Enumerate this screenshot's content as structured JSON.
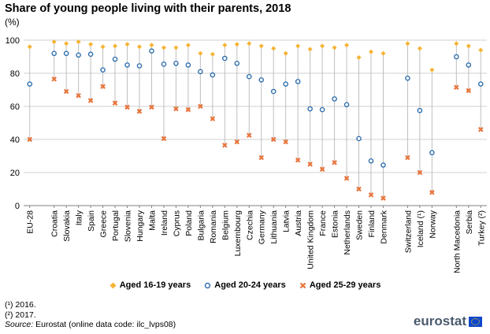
{
  "title": "Share of young people living with their parents, 2018",
  "unit": "(%)",
  "legend": {
    "s1": "Aged 16-19 years",
    "s2": "Aged 20-24 years",
    "s3": "Aged 25-29 years"
  },
  "notes": {
    "n1": "(¹) 2016.",
    "n2": "(²) 2017.",
    "source_label": "Source:",
    "source_text": " Eurostat (online data code: ilc_lvps08)"
  },
  "logo": "eurostat",
  "colors": {
    "s1": "#f5b335",
    "s2": "#2f6fad",
    "s3": "#e8743b",
    "grid": "#d0d0d0",
    "stem": "#bfbfbf"
  },
  "chart_data": {
    "type": "scatter",
    "ylim": [
      0,
      100
    ],
    "yticks": [
      0,
      20,
      40,
      60,
      80,
      100
    ],
    "grid": true,
    "legend_position": "bottom",
    "categories": [
      "EU-28",
      "Croatia",
      "Slovakia",
      "Italy",
      "Spain",
      "Greece",
      "Portugal",
      "Slovenia",
      "Hungary",
      "Malta",
      "Ireland",
      "Cyprus",
      "Poland",
      "Bulgaria",
      "Romania",
      "Belgium",
      "Luxembourg",
      "Czechia",
      "Germany",
      "Lithuania",
      "Latvia",
      "Austria",
      "United Kingdom",
      "France",
      "Estonia",
      "Netherlands",
      "Sweden",
      "Finland",
      "Denmark",
      "Switzerland",
      "Iceland (¹)",
      "Norway",
      "North Macedonia",
      "Serbia",
      "Turkey (²)"
    ],
    "groups": [
      [
        0
      ],
      [
        1,
        28
      ],
      [
        29,
        31
      ],
      [
        32,
        34
      ]
    ],
    "series": [
      {
        "name": "Aged 16-19 years",
        "marker": "diamond",
        "values": [
          96,
          99,
          98,
          99,
          97.5,
          96,
          96.5,
          97.5,
          96,
          97,
          95.5,
          95.5,
          97,
          92,
          91.5,
          97,
          97.5,
          98,
          96.5,
          95,
          92,
          96.5,
          94.5,
          96.5,
          95.5,
          97,
          89.5,
          93,
          92,
          98,
          95,
          82,
          98,
          96.5,
          94
        ]
      },
      {
        "name": "Aged 20-24 years",
        "marker": "circle",
        "values": [
          73.5,
          92,
          92,
          91,
          91.5,
          82,
          88.5,
          85,
          84.5,
          93.5,
          85.5,
          86,
          85,
          81,
          79,
          89,
          86,
          78,
          76,
          69,
          73.5,
          75,
          58.5,
          58,
          64.5,
          61,
          40.5,
          27,
          24.5,
          77,
          57.5,
          32,
          90,
          85,
          73.5
        ]
      },
      {
        "name": "Aged 25-29 years",
        "marker": "x",
        "values": [
          40,
          76.5,
          69,
          66.5,
          63.5,
          72,
          62,
          59.5,
          57,
          59.5,
          40.5,
          58.5,
          58,
          60,
          52.5,
          36.5,
          38.5,
          42.5,
          29,
          40,
          38.5,
          27.5,
          25,
          22,
          26,
          16.5,
          10,
          6.5,
          4.5,
          29,
          20,
          8,
          71.5,
          69.5,
          46
        ]
      }
    ]
  }
}
